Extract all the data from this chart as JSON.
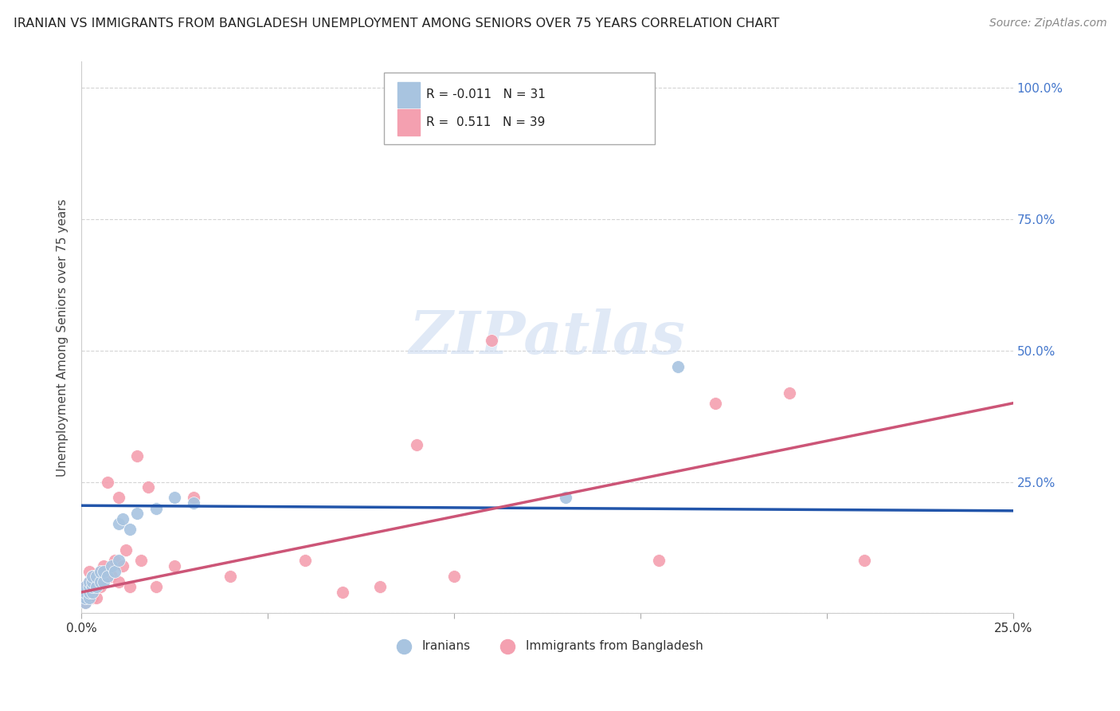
{
  "title": "IRANIAN VS IMMIGRANTS FROM BANGLADESH UNEMPLOYMENT AMONG SENIORS OVER 75 YEARS CORRELATION CHART",
  "source": "Source: ZipAtlas.com",
  "ylabel": "Unemployment Among Seniors over 75 years",
  "xlim": [
    0.0,
    0.25
  ],
  "ylim": [
    0.0,
    1.05
  ],
  "xticks": [
    0.0,
    0.05,
    0.1,
    0.15,
    0.2,
    0.25
  ],
  "yticks": [
    0.0,
    0.25,
    0.5,
    0.75,
    1.0
  ],
  "background_color": "#ffffff",
  "grid_color": "#d0d0d0",
  "iranians_color": "#a8c4e0",
  "bangladesh_color": "#f4a0b0",
  "iranians_line_color": "#2255aa",
  "bangladesh_line_color": "#cc5577",
  "iranians_x": [
    0.001,
    0.001,
    0.001,
    0.001,
    0.002,
    0.002,
    0.002,
    0.002,
    0.003,
    0.003,
    0.003,
    0.003,
    0.004,
    0.004,
    0.005,
    0.005,
    0.006,
    0.006,
    0.007,
    0.008,
    0.009,
    0.01,
    0.01,
    0.011,
    0.013,
    0.015,
    0.02,
    0.025,
    0.03,
    0.13,
    0.16
  ],
  "iranians_y": [
    0.02,
    0.03,
    0.04,
    0.05,
    0.03,
    0.04,
    0.05,
    0.06,
    0.04,
    0.05,
    0.06,
    0.07,
    0.05,
    0.07,
    0.06,
    0.08,
    0.06,
    0.08,
    0.07,
    0.09,
    0.08,
    0.1,
    0.17,
    0.18,
    0.16,
    0.19,
    0.2,
    0.22,
    0.21,
    0.22,
    0.47
  ],
  "bangladeshis_x": [
    0.001,
    0.001,
    0.001,
    0.002,
    0.002,
    0.002,
    0.003,
    0.003,
    0.003,
    0.004,
    0.004,
    0.005,
    0.005,
    0.006,
    0.007,
    0.008,
    0.009,
    0.01,
    0.01,
    0.011,
    0.012,
    0.013,
    0.015,
    0.016,
    0.018,
    0.02,
    0.025,
    0.03,
    0.04,
    0.06,
    0.07,
    0.08,
    0.09,
    0.1,
    0.11,
    0.155,
    0.17,
    0.19,
    0.21
  ],
  "bangladeshis_y": [
    0.02,
    0.03,
    0.05,
    0.04,
    0.06,
    0.08,
    0.03,
    0.05,
    0.07,
    0.03,
    0.06,
    0.05,
    0.08,
    0.09,
    0.25,
    0.07,
    0.1,
    0.06,
    0.22,
    0.09,
    0.12,
    0.05,
    0.3,
    0.1,
    0.24,
    0.05,
    0.09,
    0.22,
    0.07,
    0.1,
    0.04,
    0.05,
    0.32,
    0.07,
    0.52,
    0.1,
    0.4,
    0.42,
    0.1
  ],
  "iranians_line_y0": 0.205,
  "iranians_line_y1": 0.195,
  "bangladesh_line_y0": 0.04,
  "bangladesh_line_y1": 0.4
}
